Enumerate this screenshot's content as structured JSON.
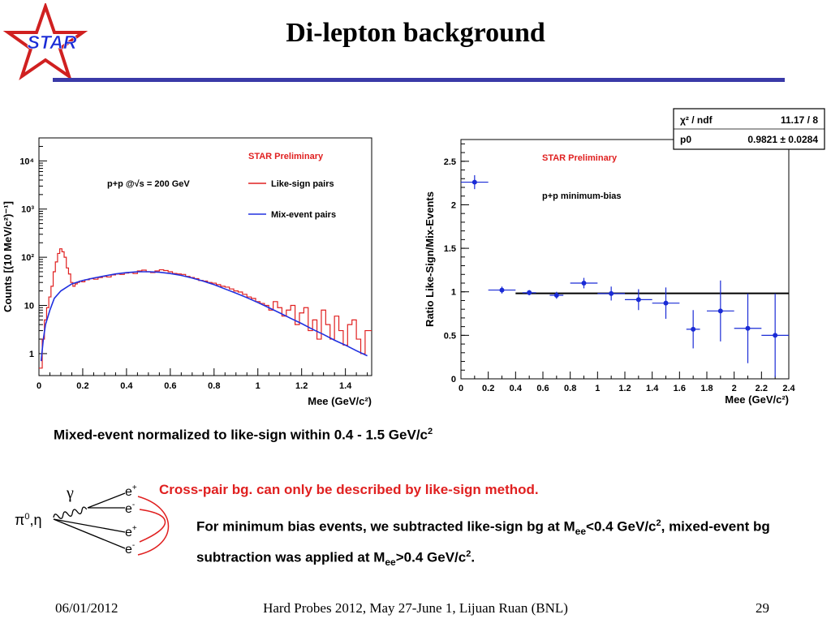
{
  "slide": {
    "title": "Di-lepton background",
    "logo_text": "STAR",
    "caption": "Mixed-event normalized to like-sign within 0.4 - 1.5 GeV/c",
    "caption_sup": "2",
    "cross_pair_text": "Cross-pair bg. can only be described by like-sign method.",
    "note": {
      "p1": "For minimum bias events, we subtracted like-sign bg at M",
      "p1_sub": "ee",
      "p2": "<0.4 GeV/c",
      "p2_sup": "2",
      "p3": ", mixed-event bg subtraction was applied at M",
      "p3_sub": "ee",
      "p4": ">0.4 GeV/c",
      "p4_sup": "2",
      "p5": "."
    },
    "footer": {
      "date": "06/01/2012",
      "conference": "Hard Probes 2012, May 27-June 1, Lijuan Ruan (BNL)",
      "page": "29"
    }
  },
  "diagram": {
    "gamma": "γ",
    "source": "π",
    "source_sup": "0",
    "source_tail": ",η",
    "e_plus_1": "e",
    "e_plus_1_sup": "+",
    "e_minus_1": "e",
    "e_minus_1_sup": "-",
    "e_plus_2": "e",
    "e_plus_2_sup": "+",
    "e_minus_2": "e",
    "e_minus_2_sup": "-",
    "arc_color": "#e02020"
  },
  "chart_data": [
    {
      "type": "line",
      "preliminary": "STAR Preliminary",
      "annotation": "p+p @√s = 200 GeV",
      "ylabel": "Counts [(10 MeV/c²)⁻¹]",
      "xlabel": "Mee (GeV/c²)",
      "x_ticks": [
        "0",
        "0.2",
        "0.4",
        "0.6",
        "0.8",
        "1",
        "1.2",
        "1.4"
      ],
      "y_ticks": [
        {
          "v": 1,
          "label": "1"
        },
        {
          "v": 10,
          "label": "10"
        },
        {
          "v": 100,
          "label": "10²"
        },
        {
          "v": 1000,
          "label": "10³"
        },
        {
          "v": 10000,
          "label": "10⁴"
        }
      ],
      "log_y": true,
      "xlim": [
        0,
        1.52
      ],
      "ylim": [
        0.35,
        30000
      ],
      "legend": [
        {
          "name": "Like-sign pairs",
          "color": "#e02020"
        },
        {
          "name": "Mix-event pairs",
          "color": "#2030e0"
        }
      ],
      "series": [
        {
          "name": "Like-sign pairs",
          "color": "#e02020",
          "x": [
            0.01,
            0.02,
            0.03,
            0.04,
            0.05,
            0.06,
            0.07,
            0.08,
            0.09,
            0.1,
            0.11,
            0.12,
            0.13,
            0.14,
            0.15,
            0.16,
            0.17,
            0.18,
            0.19,
            0.2,
            0.22,
            0.24,
            0.26,
            0.28,
            0.3,
            0.32,
            0.34,
            0.36,
            0.38,
            0.4,
            0.42,
            0.44,
            0.46,
            0.48,
            0.5,
            0.52,
            0.54,
            0.56,
            0.58,
            0.6,
            0.62,
            0.64,
            0.66,
            0.68,
            0.7,
            0.72,
            0.74,
            0.76,
            0.78,
            0.8,
            0.82,
            0.84,
            0.86,
            0.88,
            0.9,
            0.92,
            0.94,
            0.96,
            0.98,
            1.0,
            1.02,
            1.04,
            1.06,
            1.08,
            1.1,
            1.12,
            1.14,
            1.16,
            1.18,
            1.2,
            1.22,
            1.24,
            1.26,
            1.28,
            1.3,
            1.32,
            1.34,
            1.36,
            1.38,
            1.4,
            1.42,
            1.44,
            1.46,
            1.48,
            1.5
          ],
          "y": [
            0.5,
            2,
            5,
            9,
            15,
            25,
            50,
            80,
            120,
            150,
            130,
            100,
            60,
            45,
            30,
            25,
            28,
            30,
            32,
            31,
            34,
            36,
            35,
            38,
            40,
            39,
            43,
            45,
            44,
            47,
            48,
            46,
            52,
            54,
            50,
            48,
            52,
            55,
            53,
            50,
            46,
            45,
            44,
            40,
            38,
            36,
            33,
            32,
            30,
            29,
            27,
            25,
            24,
            22,
            20,
            19,
            17,
            15,
            14,
            12,
            11,
            10,
            8,
            12,
            9,
            6,
            8,
            10,
            4,
            7,
            9,
            3,
            5,
            2,
            8,
            4,
            2,
            6,
            3,
            1.5,
            4,
            5,
            2,
            1,
            3
          ]
        },
        {
          "name": "Mix-event pairs",
          "color": "#2030e0",
          "x": [
            0.01,
            0.02,
            0.03,
            0.05,
            0.07,
            0.1,
            0.15,
            0.2,
            0.25,
            0.3,
            0.35,
            0.4,
            0.45,
            0.5,
            0.55,
            0.6,
            0.65,
            0.7,
            0.75,
            0.8,
            0.85,
            0.9,
            0.95,
            1.0,
            1.05,
            1.1,
            1.15,
            1.2,
            1.25,
            1.3,
            1.35,
            1.4,
            1.45,
            1.5
          ],
          "y": [
            0.7,
            2,
            4,
            8,
            14,
            20,
            28,
            33,
            37,
            41,
            45,
            48,
            50,
            50,
            49,
            46,
            42,
            37,
            32,
            27,
            22,
            18,
            14.5,
            11.5,
            9,
            7,
            5.4,
            4.2,
            3.2,
            2.5,
            1.9,
            1.5,
            1.15,
            0.9
          ]
        }
      ]
    },
    {
      "type": "scatter",
      "preliminary": "STAR Preliminary",
      "annotation": "p+p minimum-bias",
      "ylabel": "Ratio Like-Sign/Mix-Events",
      "xlabel": "Mee (GeV/c²)",
      "x_ticks": [
        "0",
        "0.2",
        "0.4",
        "0.6",
        "0.8",
        "1",
        "1.2",
        "1.4",
        "1.6",
        "1.8",
        "2",
        "2.2",
        "2.4"
      ],
      "y_ticks": [
        "0",
        "0.5",
        "1",
        "1.5",
        "2",
        "2.5"
      ],
      "xlim": [
        0,
        2.4
      ],
      "ylim": [
        0,
        2.75
      ],
      "fit": {
        "p0": 0.9821,
        "x_from": 0.4,
        "x_to": 2.4,
        "color": "#000000"
      },
      "fit_box": {
        "row1_label": "χ² / ndf",
        "row1_value": "11.17 / 8",
        "row2_label": "p0",
        "row2_value": "0.9821 ± 0.0284"
      },
      "series": [
        {
          "name": "",
          "color": "#1a2bd6",
          "x": [
            0.1,
            0.3,
            0.5,
            0.7,
            0.9,
            1.1,
            1.3,
            1.5,
            1.7,
            1.9,
            2.1,
            2.3
          ],
          "y": [
            2.26,
            1.02,
            0.99,
            0.96,
            1.1,
            0.98,
            0.91,
            0.87,
            0.57,
            0.78,
            0.58,
            0.5
          ],
          "xerr": [
            0.1,
            0.1,
            0.05,
            0.05,
            0.1,
            0.1,
            0.1,
            0.1,
            0.05,
            0.1,
            0.1,
            0.1
          ],
          "yerr": [
            0.08,
            0.04,
            0.03,
            0.04,
            0.06,
            0.08,
            0.12,
            0.18,
            0.22,
            0.35,
            0.4,
            0.48
          ]
        }
      ]
    }
  ]
}
